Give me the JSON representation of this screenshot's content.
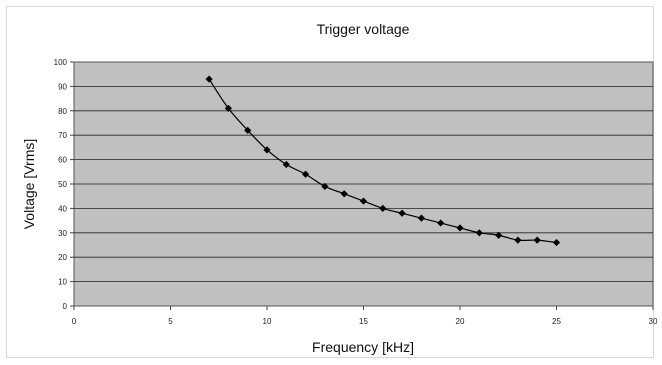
{
  "chart_data": {
    "type": "scatter",
    "title": "Trigger voltage",
    "xlabel": "Frequency [kHz]",
    "ylabel": "Voltage [Vrms]",
    "xlim": [
      0,
      30
    ],
    "ylim": [
      0,
      100
    ],
    "xticks": [
      "0",
      "5",
      "10",
      "15",
      "20",
      "25",
      "30"
    ],
    "yticks": [
      "0",
      "10",
      "20",
      "30",
      "40",
      "50",
      "60",
      "70",
      "80",
      "90",
      "100"
    ],
    "grid": "horizontal",
    "plot_background": "#c0c0c0",
    "series": [
      {
        "x": [
          7,
          8,
          9,
          10,
          11,
          12,
          13,
          14,
          15,
          16,
          17,
          18,
          19,
          20,
          21,
          22,
          23,
          24,
          25
        ],
        "y": [
          93,
          81,
          72,
          64,
          58,
          54,
          49,
          46,
          43,
          40,
          38,
          36,
          34,
          32,
          30,
          29,
          27,
          27,
          26
        ],
        "color": "#000000"
      }
    ]
  }
}
